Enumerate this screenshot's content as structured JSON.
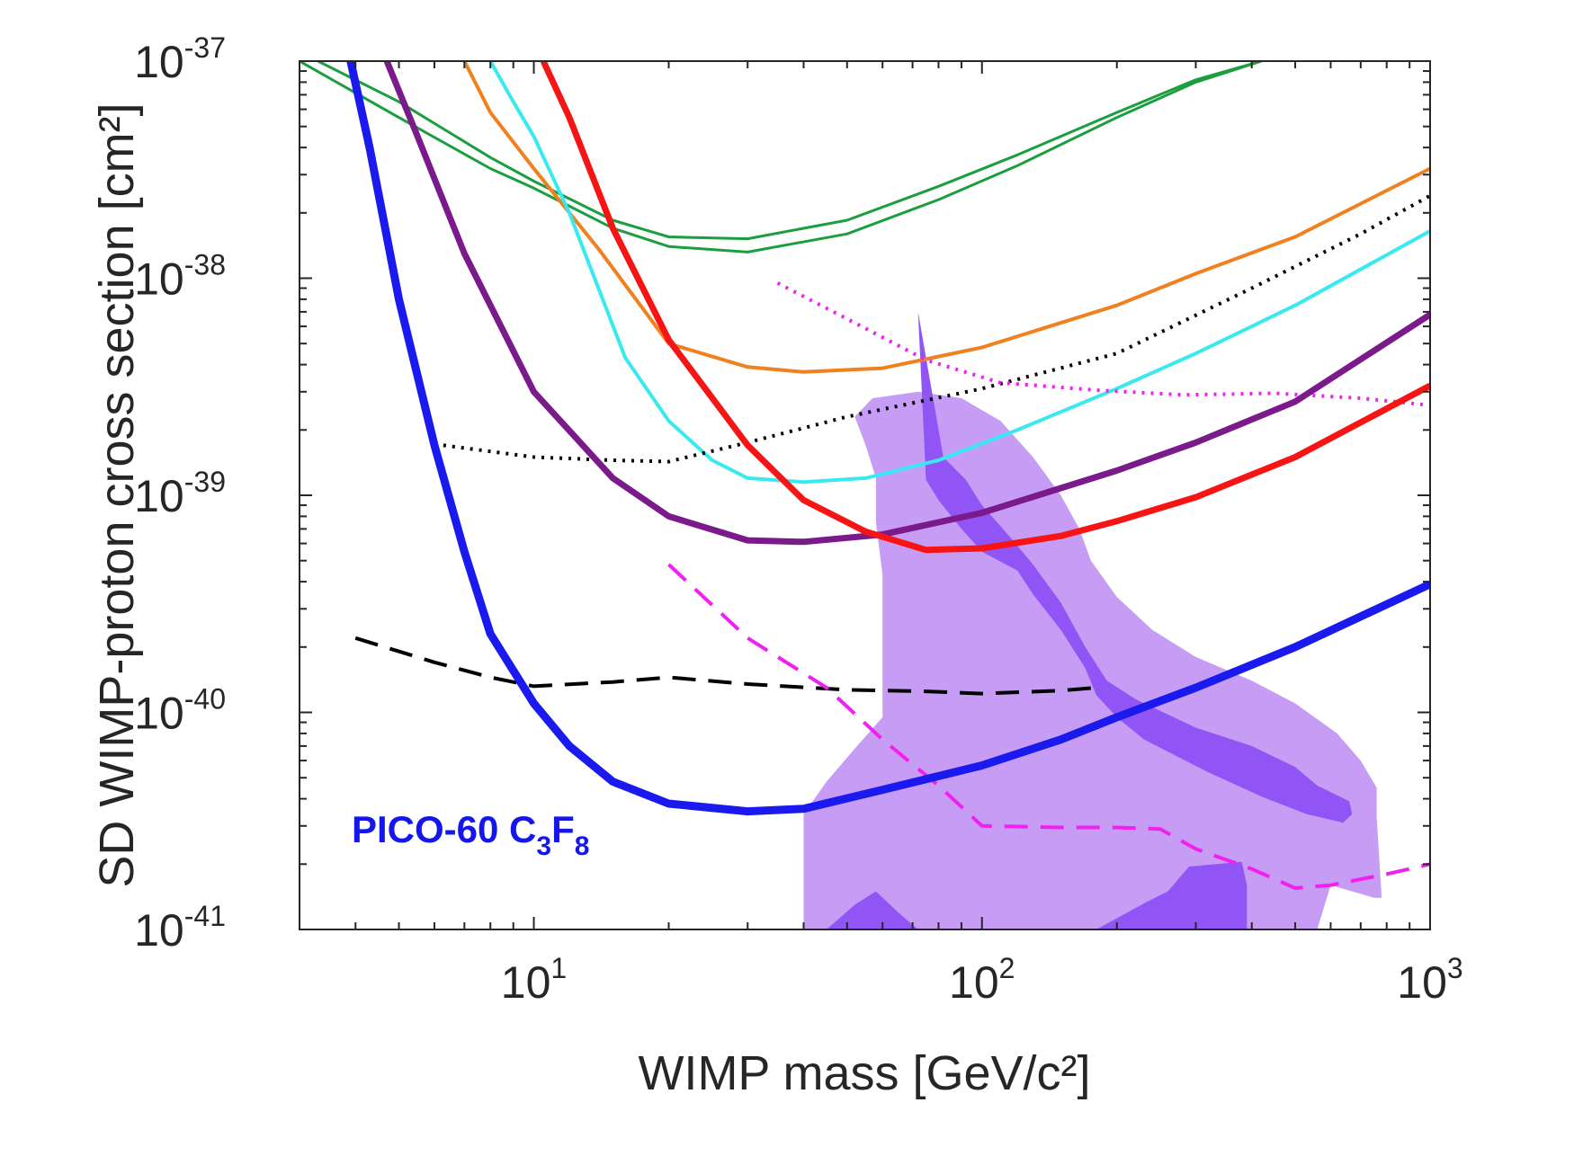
{
  "chart_data": {
    "type": "line",
    "xlabel": "WIMP mass [GeV/c²]",
    "ylabel": "SD WIMP-proton cross section [cm²]",
    "xscale": "log",
    "yscale": "log",
    "xlim": [
      3,
      1000
    ],
    "ylim": [
      1e-41,
      1e-37
    ],
    "grid": false,
    "x_ticks": [
      {
        "value": 10,
        "base": "10",
        "exp": "1"
      },
      {
        "value": 100,
        "base": "10",
        "exp": "2"
      },
      {
        "value": 1000,
        "base": "10",
        "exp": "3"
      }
    ],
    "y_ticks": [
      {
        "value": 1e-37,
        "base": "10",
        "exp": "-37"
      },
      {
        "value": 1e-38,
        "base": "10",
        "exp": "-38"
      },
      {
        "value": 1e-39,
        "base": "10",
        "exp": "-39"
      },
      {
        "value": 1e-40,
        "base": "10",
        "exp": "-40"
      },
      {
        "value": 1e-41,
        "base": "10",
        "exp": "-41"
      }
    ],
    "annotation": {
      "prefix": "PICO-60 C",
      "sub1": "3",
      "mid": "F",
      "sub2": "8",
      "color": "#1515ee"
    },
    "regions": [
      {
        "fill": "#c69cf5",
        "points": [
          [
            40,
            1e-41
          ],
          [
            40,
            3.4e-41
          ],
          [
            45,
            4.8e-41
          ],
          [
            52,
            6.8e-41
          ],
          [
            60,
            9.5e-41
          ],
          [
            60,
            4.3e-40
          ],
          [
            58,
            7.5e-40
          ],
          [
            58,
            1.2e-39
          ],
          [
            55,
            1.7e-39
          ],
          [
            52,
            2.3e-39
          ],
          [
            57,
            2.8e-39
          ],
          [
            72,
            3e-39
          ],
          [
            90,
            2.8e-39
          ],
          [
            110,
            2.2e-39
          ],
          [
            130,
            1.5e-39
          ],
          [
            150,
            1e-39
          ],
          [
            165,
            7e-40
          ],
          [
            175,
            5e-40
          ],
          [
            200,
            3.4e-40
          ],
          [
            240,
            2.4e-40
          ],
          [
            300,
            1.8e-40
          ],
          [
            400,
            1.4e-40
          ],
          [
            500,
            1.1e-40
          ],
          [
            620,
            8e-41
          ],
          [
            700,
            6e-41
          ],
          [
            760,
            4.5e-41
          ],
          [
            760,
            3.3e-41
          ],
          [
            780,
            1.4e-41
          ],
          [
            750,
            1.4e-41
          ],
          [
            600,
            1.6e-41
          ],
          [
            560,
            1e-41
          ]
        ]
      },
      {
        "fill": "#9155f5",
        "points": [
          [
            72,
            7e-39
          ],
          [
            82,
            1.5e-39
          ],
          [
            92,
            1.18e-39
          ],
          [
            100,
            9e-40
          ],
          [
            115,
            6.5e-40
          ],
          [
            130,
            4.8e-40
          ],
          [
            150,
            3.2e-40
          ],
          [
            170,
            2e-40
          ],
          [
            190,
            1.4e-40
          ],
          [
            220,
            1.15e-40
          ],
          [
            300,
            8.5e-41
          ],
          [
            400,
            7e-41
          ],
          [
            500,
            5.6e-41
          ],
          [
            560,
            4.6e-41
          ],
          [
            660,
            3.9e-41
          ],
          [
            670,
            3.4e-41
          ],
          [
            640,
            3.1e-41
          ],
          [
            530,
            3.4e-41
          ],
          [
            420,
            4.1e-41
          ],
          [
            320,
            5.3e-41
          ],
          [
            230,
            7.5e-41
          ],
          [
            200,
            9.5e-41
          ],
          [
            180,
            1.2e-40
          ],
          [
            170,
            1.6e-40
          ],
          [
            150,
            2.4e-40
          ],
          [
            130,
            3.5e-40
          ],
          [
            120,
            4.5e-40
          ],
          [
            100,
            5.5e-40
          ],
          [
            90,
            7e-40
          ],
          [
            80,
            9.5e-40
          ],
          [
            75,
            1.18e-39
          ]
        ]
      },
      {
        "fill": "#9155f5",
        "points": [
          [
            45,
            1e-41
          ],
          [
            52,
            1.3e-41
          ],
          [
            58,
            1.5e-41
          ],
          [
            65,
            1.2e-41
          ],
          [
            72,
            1e-41
          ]
        ]
      },
      {
        "fill": "#9155f5",
        "points": [
          [
            180,
            1e-41
          ],
          [
            230,
            1.32e-41
          ],
          [
            260,
            1.5e-41
          ],
          [
            290,
            1.95e-41
          ],
          [
            380,
            2.05e-41
          ],
          [
            390,
            1.6e-41
          ],
          [
            390,
            1e-41
          ]
        ]
      }
    ],
    "series": [
      {
        "color": "#1b9e3e",
        "width": 3,
        "dash": "",
        "values": [
          [
            3,
            1e-37
          ],
          [
            5,
            5.5e-38
          ],
          [
            8,
            3.2e-38
          ],
          [
            10,
            2.6e-38
          ],
          [
            15,
            1.7e-38
          ],
          [
            20,
            1.4e-38
          ],
          [
            30,
            1.32e-38
          ],
          [
            50,
            1.6e-38
          ],
          [
            80,
            2.3e-38
          ],
          [
            120,
            3.3e-38
          ],
          [
            200,
            5.5e-38
          ],
          [
            300,
            8e-38
          ],
          [
            420,
            1e-37
          ]
        ]
      },
      {
        "color": "#1b9e3e",
        "width": 3,
        "dash": "",
        "values": [
          [
            3.3,
            1e-37
          ],
          [
            5,
            6.5e-38
          ],
          [
            8,
            3.6e-38
          ],
          [
            10,
            2.8e-38
          ],
          [
            15,
            1.85e-38
          ],
          [
            20,
            1.55e-38
          ],
          [
            30,
            1.52e-38
          ],
          [
            50,
            1.85e-38
          ],
          [
            80,
            2.65e-38
          ],
          [
            120,
            3.7e-38
          ],
          [
            200,
            5.8e-38
          ],
          [
            300,
            8.2e-38
          ],
          [
            420,
            1e-37
          ]
        ]
      },
      {
        "color": "#f08121",
        "width": 4,
        "dash": "",
        "values": [
          [
            7,
            1e-37
          ],
          [
            8,
            5.8e-38
          ],
          [
            10,
            3.2e-38
          ],
          [
            14,
            1.35e-38
          ],
          [
            20,
            5e-39
          ],
          [
            30,
            3.9e-39
          ],
          [
            40,
            3.7e-39
          ],
          [
            60,
            3.85e-39
          ],
          [
            100,
            4.8e-39
          ],
          [
            200,
            7.5e-39
          ],
          [
            300,
            1.05e-38
          ],
          [
            500,
            1.55e-38
          ],
          [
            1000,
            3.2e-38
          ]
        ]
      },
      {
        "color": "#38eaf0",
        "width": 4,
        "dash": "",
        "values": [
          [
            8,
            1e-37
          ],
          [
            9,
            6.5e-38
          ],
          [
            10,
            4.5e-38
          ],
          [
            12,
            2e-38
          ],
          [
            16,
            4.3e-39
          ],
          [
            20,
            2.2e-39
          ],
          [
            25,
            1.45e-39
          ],
          [
            30,
            1.2e-39
          ],
          [
            40,
            1.15e-39
          ],
          [
            55,
            1.2e-39
          ],
          [
            80,
            1.45e-39
          ],
          [
            120,
            2e-39
          ],
          [
            200,
            3.1e-39
          ],
          [
            300,
            4.5e-39
          ],
          [
            500,
            7.5e-39
          ],
          [
            1000,
            1.65e-38
          ]
        ]
      },
      {
        "color": "#000000",
        "width": 4,
        "dash": "3 7",
        "values": [
          [
            6,
            1.72e-39
          ],
          [
            10,
            1.5e-39
          ],
          [
            15,
            1.45e-39
          ],
          [
            20,
            1.43e-39
          ],
          [
            30,
            1.75e-39
          ],
          [
            50,
            2.3e-39
          ],
          [
            100,
            3.1e-39
          ],
          [
            200,
            4.5e-39
          ],
          [
            400,
            9e-39
          ],
          [
            700,
            1.6e-38
          ],
          [
            1000,
            2.4e-38
          ]
        ]
      },
      {
        "color": "#f020f0",
        "width": 4,
        "dash": "3 7",
        "values": [
          [
            35,
            9.5e-39
          ],
          [
            50,
            6.5e-39
          ],
          [
            75,
            4.2e-39
          ],
          [
            110,
            3.3e-39
          ],
          [
            180,
            3.05e-39
          ],
          [
            280,
            2.9e-39
          ],
          [
            450,
            2.95e-39
          ],
          [
            700,
            2.8e-39
          ],
          [
            1000,
            2.6e-39
          ]
        ]
      },
      {
        "color": "#7b1a8a",
        "width": 7,
        "dash": "",
        "values": [
          [
            4.7,
            1e-37
          ],
          [
            5.5,
            4.5e-38
          ],
          [
            7,
            1.3e-38
          ],
          [
            10,
            3e-39
          ],
          [
            15,
            1.2e-39
          ],
          [
            20,
            8e-40
          ],
          [
            30,
            6.2e-40
          ],
          [
            40,
            6.1e-40
          ],
          [
            60,
            6.6e-40
          ],
          [
            100,
            8.3e-40
          ],
          [
            200,
            1.3e-39
          ],
          [
            300,
            1.75e-39
          ],
          [
            500,
            2.7e-39
          ],
          [
            1000,
            6.8e-39
          ]
        ]
      },
      {
        "color": "#f71414",
        "width": 7,
        "dash": "",
        "values": [
          [
            10.5,
            1e-37
          ],
          [
            12,
            5.5e-38
          ],
          [
            15,
            1.7e-38
          ],
          [
            20,
            5.2e-39
          ],
          [
            30,
            1.7e-39
          ],
          [
            40,
            9.5e-40
          ],
          [
            55,
            6.8e-40
          ],
          [
            75,
            5.6e-40
          ],
          [
            100,
            5.7e-40
          ],
          [
            150,
            6.5e-40
          ],
          [
            200,
            7.6e-40
          ],
          [
            300,
            9.8e-40
          ],
          [
            500,
            1.5e-39
          ],
          [
            1000,
            3.2e-39
          ]
        ]
      },
      {
        "color": "#000000",
        "width": 4,
        "dash": "26 14",
        "values": [
          [
            4,
            2.2e-40
          ],
          [
            6,
            1.7e-40
          ],
          [
            8,
            1.45e-40
          ],
          [
            10,
            1.32e-40
          ],
          [
            15,
            1.38e-40
          ],
          [
            20,
            1.45e-40
          ],
          [
            30,
            1.35e-40
          ],
          [
            50,
            1.27e-40
          ],
          [
            75,
            1.25e-40
          ],
          [
            100,
            1.22e-40
          ],
          [
            150,
            1.26e-40
          ],
          [
            180,
            1.3e-40
          ]
        ]
      },
      {
        "color": "#f020f0",
        "width": 4,
        "dash": "26 14",
        "values": [
          [
            20,
            4.8e-40
          ],
          [
            30,
            2.2e-40
          ],
          [
            45,
            1.3e-40
          ],
          [
            60,
            7.5e-41
          ],
          [
            80,
            4.6e-41
          ],
          [
            100,
            3e-41
          ],
          [
            150,
            2.95e-41
          ],
          [
            200,
            2.95e-41
          ],
          [
            250,
            2.9e-41
          ],
          [
            300,
            2.35e-41
          ],
          [
            400,
            1.9e-41
          ],
          [
            500,
            1.55e-41
          ],
          [
            600,
            1.6e-41
          ],
          [
            800,
            1.8e-41
          ],
          [
            1000,
            2e-41
          ]
        ]
      },
      {
        "color": "#1a1aee",
        "width": 9,
        "dash": "",
        "values": [
          [
            3.9,
            1e-37
          ],
          [
            4.3,
            4e-38
          ],
          [
            5,
            8e-39
          ],
          [
            6,
            1.7e-39
          ],
          [
            7,
            5.5e-40
          ],
          [
            8,
            2.3e-40
          ],
          [
            10,
            1.1e-40
          ],
          [
            12,
            7e-41
          ],
          [
            15,
            4.8e-41
          ],
          [
            20,
            3.8e-41
          ],
          [
            30,
            3.5e-41
          ],
          [
            40,
            3.6e-41
          ],
          [
            60,
            4.4e-41
          ],
          [
            100,
            5.7e-41
          ],
          [
            150,
            7.5e-41
          ],
          [
            200,
            9.5e-41
          ],
          [
            300,
            1.3e-40
          ],
          [
            500,
            2e-40
          ],
          [
            1000,
            3.9e-40
          ]
        ]
      }
    ]
  }
}
